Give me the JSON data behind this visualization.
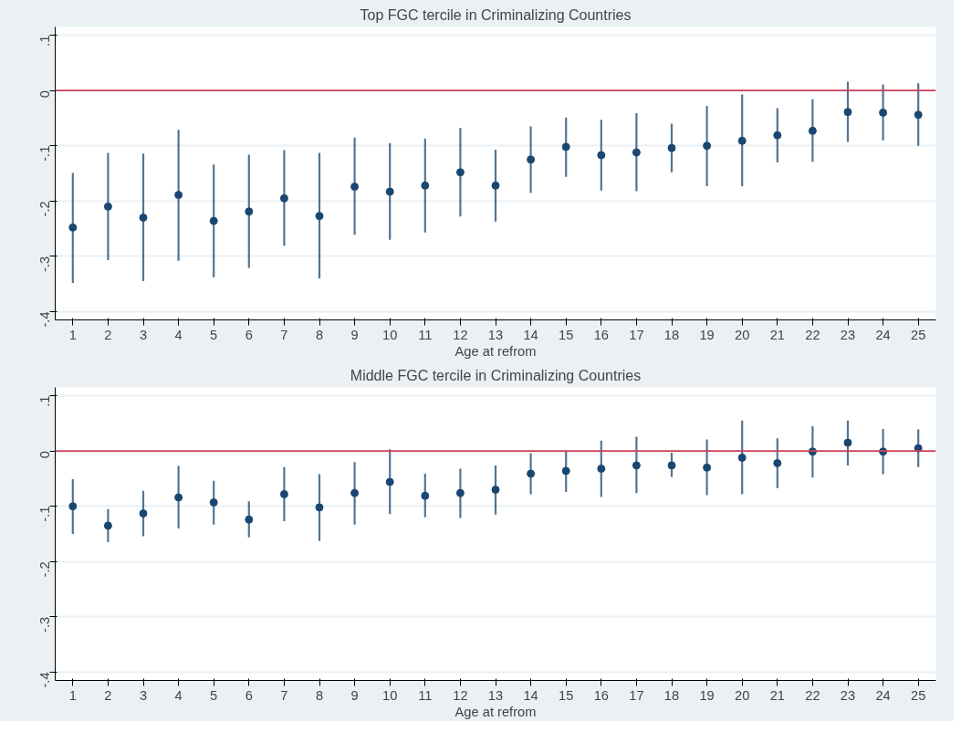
{
  "chart_data": [
    {
      "type": "scatter",
      "title": "Top FGC tercile in Criminalizing Countries",
      "xlabel": "Age at refrom",
      "x": [
        1,
        2,
        3,
        4,
        5,
        6,
        7,
        8,
        9,
        10,
        11,
        12,
        13,
        14,
        15,
        16,
        17,
        18,
        19,
        20,
        21,
        22,
        23,
        24,
        25
      ],
      "series": [
        {
          "color": "#1a476f",
          "values": [
            -0.248,
            -0.21,
            -0.23,
            -0.189,
            -0.236,
            -0.219,
            -0.195,
            -0.227,
            -0.174,
            -0.183,
            -0.172,
            -0.148,
            -0.172,
            -0.125,
            -0.102,
            -0.117,
            -0.112,
            -0.104,
            -0.1,
            -0.091,
            -0.081,
            -0.073,
            -0.039,
            -0.04,
            -0.044
          ],
          "errors": [
            [
              -0.348,
              -0.149
            ],
            [
              -0.307,
              -0.113
            ],
            [
              -0.345,
              -0.114
            ],
            [
              -0.308,
              -0.071
            ],
            [
              -0.338,
              -0.134
            ],
            [
              -0.321,
              -0.116
            ],
            [
              -0.281,
              -0.108
            ],
            [
              -0.34,
              -0.113
            ],
            [
              -0.261,
              -0.085
            ],
            [
              -0.27,
              -0.095
            ],
            [
              -0.257,
              -0.087
            ],
            [
              -0.228,
              -0.068
            ],
            [
              -0.237,
              -0.107
            ],
            [
              -0.185,
              -0.065
            ],
            [
              -0.156,
              -0.049
            ],
            [
              -0.181,
              -0.053
            ],
            [
              -0.182,
              -0.041
            ],
            [
              -0.148,
              -0.06
            ],
            [
              -0.173,
              -0.028
            ],
            [
              -0.173,
              -0.007
            ],
            [
              -0.13,
              -0.032
            ],
            [
              -0.129,
              -0.016
            ],
            [
              -0.093,
              0.016
            ],
            [
              -0.09,
              0.011
            ],
            [
              -0.1,
              0.013
            ]
          ]
        }
      ],
      "marker": "circle",
      "xlim": [
        0.5,
        25.5
      ],
      "xticks": [
        1,
        2,
        3,
        4,
        5,
        6,
        7,
        8,
        9,
        10,
        11,
        12,
        13,
        14,
        15,
        16,
        17,
        18,
        19,
        20,
        21,
        22,
        23,
        24,
        25
      ],
      "ylim": [
        -0.415,
        0.115
      ],
      "yticks": [
        {
          "value": 0.1,
          "label": ".1"
        },
        0,
        {
          "value": -0.1,
          "label": "-.1"
        },
        {
          "value": -0.2,
          "label": "-.2"
        },
        {
          "value": -0.3,
          "label": "-.3"
        },
        {
          "value": -0.4,
          "label": "-.4"
        }
      ],
      "grid": "y",
      "ref_lines": [
        {
          "axis": "y",
          "value": 0,
          "color": "#d0405a"
        }
      ]
    },
    {
      "type": "scatter",
      "title": "Middle FGC tercile in Criminalizing Countries",
      "xlabel": "Age at refrom",
      "x": [
        1,
        2,
        3,
        4,
        5,
        6,
        7,
        8,
        9,
        10,
        11,
        12,
        13,
        14,
        15,
        16,
        17,
        18,
        19,
        20,
        21,
        22,
        23,
        24,
        25
      ],
      "series": [
        {
          "color": "#1a476f",
          "values": [
            -0.1,
            -0.135,
            -0.113,
            -0.084,
            -0.093,
            -0.124,
            -0.078,
            -0.102,
            -0.076,
            -0.056,
            -0.081,
            -0.076,
            -0.07,
            -0.041,
            -0.036,
            -0.032,
            -0.026,
            -0.026,
            -0.03,
            -0.012,
            -0.022,
            -0.001,
            0.015,
            -0.001,
            0.005
          ],
          "errors": [
            [
              -0.15,
              -0.051
            ],
            [
              -0.165,
              -0.105
            ],
            [
              -0.154,
              -0.072
            ],
            [
              -0.14,
              -0.027
            ],
            [
              -0.133,
              -0.054
            ],
            [
              -0.156,
              -0.091
            ],
            [
              -0.127,
              -0.029
            ],
            [
              -0.163,
              -0.042
            ],
            [
              -0.133,
              -0.02
            ],
            [
              -0.114,
              0.003
            ],
            [
              -0.12,
              -0.041
            ],
            [
              -0.121,
              -0.032
            ],
            [
              -0.115,
              -0.026
            ],
            [
              -0.078,
              -0.004
            ],
            [
              -0.074,
              0.001
            ],
            [
              -0.083,
              0.019
            ],
            [
              -0.076,
              0.026
            ],
            [
              -0.047,
              -0.003
            ],
            [
              -0.08,
              0.021
            ],
            [
              -0.078,
              0.055
            ],
            [
              -0.067,
              0.023
            ],
            [
              -0.048,
              0.045
            ],
            [
              -0.026,
              0.055
            ],
            [
              -0.042,
              0.04
            ],
            [
              -0.029,
              0.039
            ]
          ]
        }
      ],
      "marker": "circle",
      "xlim": [
        0.5,
        25.5
      ],
      "xticks": [
        1,
        2,
        3,
        4,
        5,
        6,
        7,
        8,
        9,
        10,
        11,
        12,
        13,
        14,
        15,
        16,
        17,
        18,
        19,
        20,
        21,
        22,
        23,
        24,
        25
      ],
      "ylim": [
        -0.415,
        0.115
      ],
      "yticks": [
        {
          "value": 0.1,
          "label": ".1"
        },
        0,
        {
          "value": -0.1,
          "label": "-.1"
        },
        {
          "value": -0.2,
          "label": "-.2"
        },
        {
          "value": -0.3,
          "label": "-.3"
        },
        {
          "value": -0.4,
          "label": "-.4"
        }
      ],
      "grid": "y",
      "ref_lines": [
        {
          "axis": "y",
          "value": 0,
          "color": "#d0405a"
        }
      ]
    }
  ]
}
